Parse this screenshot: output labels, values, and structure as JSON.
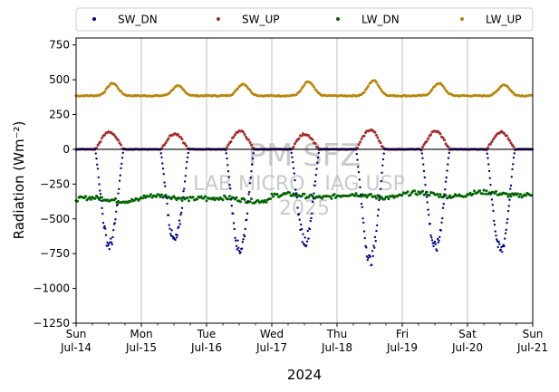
{
  "chart_data": {
    "type": "scatter",
    "xlabel": "2024",
    "ylabel": "Radiation (Wm⁻²)",
    "ylim": [
      -1250,
      800
    ],
    "xlim": [
      "2024-07-14",
      "2024-07-21"
    ],
    "yticks": [
      750,
      500,
      250,
      0,
      -250,
      -500,
      -750,
      -1000,
      -1250
    ],
    "ytick_labels": [
      "750",
      "500",
      "250",
      "0",
      "−250",
      "−500",
      "−750",
      "−1000",
      "−1250"
    ],
    "xticks": [
      {
        "day": "Sun",
        "date": "Jul-14"
      },
      {
        "day": "Mon",
        "date": "Jul-15"
      },
      {
        "day": "Tue",
        "date": "Jul-16"
      },
      {
        "day": "Wed",
        "date": "Jul-17"
      },
      {
        "day": "Thu",
        "date": "Jul-18"
      },
      {
        "day": "Fri",
        "date": "Jul-19"
      },
      {
        "day": "Sat",
        "date": "Jul-20"
      },
      {
        "day": "Sun",
        "date": "Jul-21"
      }
    ],
    "grid": "vertical",
    "zero_line": 0,
    "legend_position": "top",
    "watermark": [
      "PM SFZ",
      "LAB MICRO - IAG USP",
      "2025"
    ],
    "series": [
      {
        "name": "SW_DN",
        "color": "#00008b",
        "night_value": 0,
        "daily_peaks": [
          {
            "date": "2024-07-14",
            "value": -690
          },
          {
            "date": "2024-07-15",
            "value": -660
          },
          {
            "date": "2024-07-16",
            "value": -720
          },
          {
            "date": "2024-07-17",
            "value": -660
          },
          {
            "date": "2024-07-18",
            "value": -800
          },
          {
            "date": "2024-07-19",
            "value": -710
          },
          {
            "date": "2024-07-20",
            "value": -730
          }
        ]
      },
      {
        "name": "SW_UP",
        "color": "#a52a2a",
        "night_value": 0,
        "daily_peaks": [
          {
            "date": "2024-07-14",
            "value": 125
          },
          {
            "date": "2024-07-15",
            "value": 110
          },
          {
            "date": "2024-07-16",
            "value": 130
          },
          {
            "date": "2024-07-17",
            "value": 110
          },
          {
            "date": "2024-07-18",
            "value": 140
          },
          {
            "date": "2024-07-19",
            "value": 130
          },
          {
            "date": "2024-07-20",
            "value": 125
          }
        ]
      },
      {
        "name": "LW_DN",
        "color": "#006400",
        "daily_values": [
          {
            "date": "2024-07-14",
            "value": -360
          },
          {
            "date": "2024-07-15",
            "value": -345
          },
          {
            "date": "2024-07-16",
            "value": -360
          },
          {
            "date": "2024-07-17",
            "value": -335
          },
          {
            "date": "2024-07-18",
            "value": -335
          },
          {
            "date": "2024-07-19",
            "value": -325
          },
          {
            "date": "2024-07-20",
            "value": -320
          }
        ]
      },
      {
        "name": "LW_UP",
        "color": "#b8860b",
        "night_value": 385,
        "daily_peaks": [
          {
            "date": "2024-07-14",
            "value": 475
          },
          {
            "date": "2024-07-15",
            "value": 455
          },
          {
            "date": "2024-07-16",
            "value": 470
          },
          {
            "date": "2024-07-17",
            "value": 485
          },
          {
            "date": "2024-07-18",
            "value": 495
          },
          {
            "date": "2024-07-19",
            "value": 475
          },
          {
            "date": "2024-07-20",
            "value": 465
          }
        ]
      }
    ]
  }
}
